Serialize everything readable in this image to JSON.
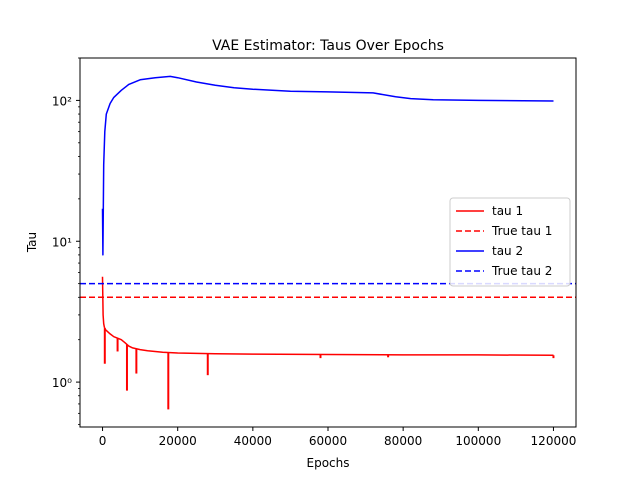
{
  "chart_data": {
    "type": "line",
    "title": "VAE Estimator: Taus Over Epochs",
    "xlabel": "Epochs",
    "ylabel": "Tau",
    "xlim": [
      -6000,
      126000
    ],
    "ylim": [
      0.48,
      200
    ],
    "yscale": "log",
    "xticks": [
      0,
      20000,
      40000,
      60000,
      80000,
      100000,
      120000
    ],
    "xtick_labels": [
      "0",
      "20000",
      "40000",
      "60000",
      "80000",
      "100000",
      "120000"
    ],
    "yticks": [
      1,
      10,
      100
    ],
    "ytick_labels": [
      "10⁰",
      "10¹",
      "10²"
    ],
    "legend_position": "center-right",
    "series": [
      {
        "name": "tau 1",
        "color": "#ff0000",
        "style": "solid",
        "points": [
          [
            0,
            5.6
          ],
          [
            150,
            3.0
          ],
          [
            300,
            2.6
          ],
          [
            500,
            2.45
          ],
          [
            800,
            2.35
          ],
          [
            1200,
            2.3
          ],
          [
            2000,
            2.2
          ],
          [
            3000,
            2.1
          ],
          [
            4000,
            2.05
          ],
          [
            5000,
            2.0
          ],
          [
            6000,
            1.9
          ],
          [
            7000,
            1.8
          ],
          [
            8000,
            1.75
          ],
          [
            10000,
            1.7
          ],
          [
            12000,
            1.67
          ],
          [
            14000,
            1.65
          ],
          [
            16000,
            1.63
          ],
          [
            18000,
            1.62
          ],
          [
            20000,
            1.61
          ],
          [
            25000,
            1.6
          ],
          [
            30000,
            1.59
          ],
          [
            40000,
            1.58
          ],
          [
            60000,
            1.57
          ],
          [
            80000,
            1.56
          ],
          [
            100000,
            1.56
          ],
          [
            120000,
            1.55
          ]
        ],
        "spikes": [
          [
            600,
            1.35
          ],
          [
            4000,
            1.65
          ],
          [
            6500,
            0.87
          ],
          [
            9000,
            1.15
          ],
          [
            17500,
            0.64
          ],
          [
            28000,
            1.12
          ],
          [
            58000,
            1.48
          ],
          [
            76000,
            1.5
          ],
          [
            120000,
            1.48
          ]
        ]
      },
      {
        "name": "True tau 1",
        "color": "#ff0000",
        "style": "dashed",
        "constant": 4.0
      },
      {
        "name": "tau 2",
        "color": "#0000ff",
        "style": "solid",
        "points": [
          [
            0,
            17
          ],
          [
            100,
            8
          ],
          [
            300,
            35
          ],
          [
            600,
            60
          ],
          [
            1000,
            80
          ],
          [
            2000,
            95
          ],
          [
            3000,
            105
          ],
          [
            5000,
            118
          ],
          [
            7000,
            130
          ],
          [
            10000,
            140
          ],
          [
            14000,
            145
          ],
          [
            18000,
            148
          ],
          [
            20000,
            145
          ],
          [
            25000,
            135
          ],
          [
            30000,
            128
          ],
          [
            35000,
            123
          ],
          [
            40000,
            120
          ],
          [
            50000,
            116
          ],
          [
            60000,
            115
          ],
          [
            72000,
            113
          ],
          [
            78000,
            106
          ],
          [
            82000,
            103
          ],
          [
            88000,
            101
          ],
          [
            100000,
            100
          ],
          [
            120000,
            99
          ]
        ]
      },
      {
        "name": "True tau 2",
        "color": "#0000ff",
        "style": "dashed",
        "constant": 5.0
      }
    ]
  }
}
